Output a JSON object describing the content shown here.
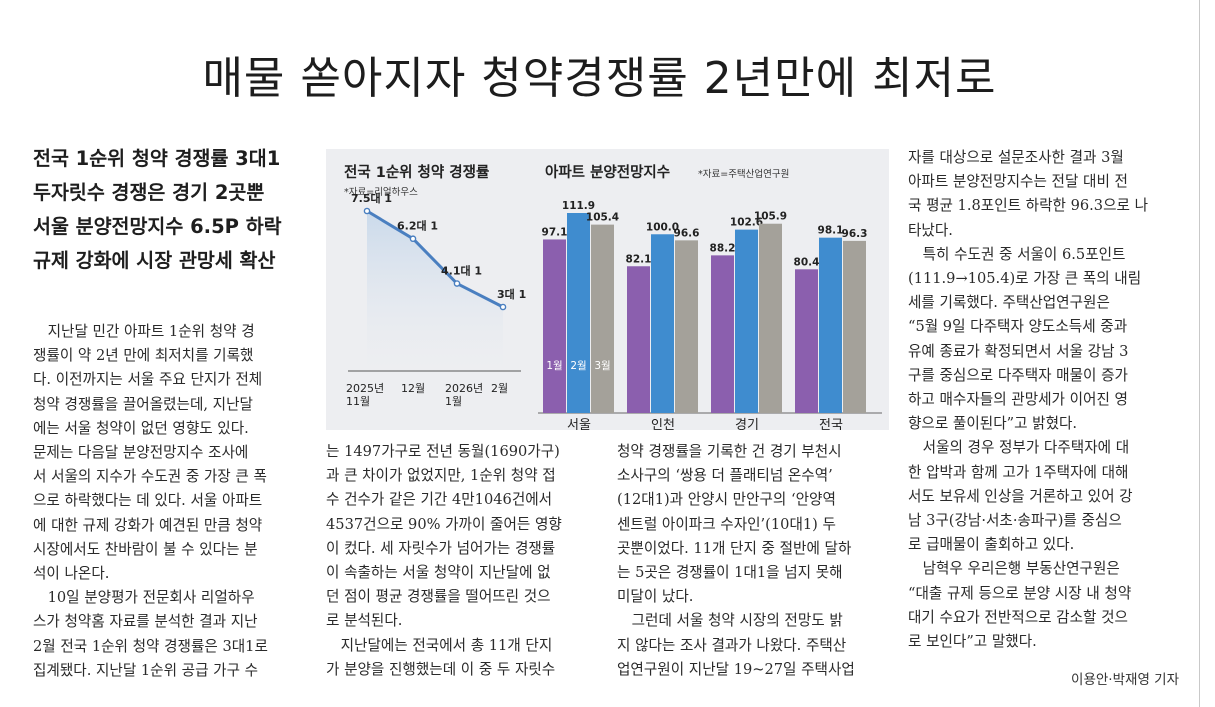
{
  "headline": "매물 쏟아지자 청약경쟁률 2년만에 최저로",
  "subheads": [
    "전국 1순위 청약 경쟁률 3대1",
    "두자릿수 경쟁은 경기 2곳뿐",
    "서울 분양전망지수 6.5P 하락",
    "규제 강화에 시장 관망세 확산"
  ],
  "columns": [
    [
      "　지난달 민간 아파트 1순위 청약 경",
      "쟁률이 약 2년 만에 최저치를 기록했",
      "다. 이전까지는 서울 주요 단지가 전체",
      "청약 경쟁률을 끌어올렸는데, 지난달",
      "에는 서울 청약이 없던 영향도 있다.",
      "문제는 다음달 분양전망지수 조사에",
      "서 서울의 지수가 수도권 중 가장 큰 폭",
      "으로 하락했다는 데 있다. 서울 아파트",
      "에 대한 규제 강화가 예견된 만큼 청약",
      "시장에서도 찬바람이 불 수 있다는 분",
      "석이 나온다.",
      "　10일 분양평가 전문회사 리얼하우",
      "스가 청약홈 자료를 분석한 결과 지난",
      "2월 전국 1순위 청약 경쟁률은 3대1로",
      "집계됐다. 지난달 1순위 공급 가구 수"
    ],
    [
      "는 1497가구로 전년 동월(1690가구)",
      "과 큰 차이가 없었지만, 1순위 청약 접",
      "수 건수가 같은 기간 4만1046건에서",
      "4537건으로 90% 가까이 줄어든 영향",
      "이 컸다. 세 자릿수가 넘어가는 경쟁률",
      "이 속출하는 서울 청약이 지난달에 없",
      "던 점이 평균 경쟁률을 떨어뜨린 것으",
      "로 분석된다.",
      "　지난달에는 전국에서 총 11개 단지",
      "가 분양을 진행했는데 이 중 두 자릿수"
    ],
    [
      "청약 경쟁률을 기록한 건 경기 부천시",
      "소사구의 ‘쌍용 더 플래티넘 온수역’",
      "(12대1)과 안양시 만안구의 ‘안양역",
      "센트럴 아이파크 수자인’(10대1) 두",
      "곳뿐이었다. 11개 단지 중 절반에 달하",
      "는 5곳은 경쟁률이 1대1을 넘지 못해",
      "미달이 났다.",
      "　그런데 서울 청약 시장의 전망도 밝",
      "지 않다는 조사 결과가 나왔다. 주택산",
      "업연구원이 지난달 19~27일 주택사업"
    ],
    [
      "자를 대상으로 설문조사한 결과 3월",
      "아파트 분양전망지수는 전달 대비 전",
      "국 평균 1.8포인트 하락한 96.3으로 나",
      "타났다.",
      "　특히 수도권 중 서울이 6.5포인트",
      "(111.9→105.4)로 가장 큰 폭의 내림",
      "세를  기록했다.  주택산업연구원은",
      "“5월 9일 다주택자 양도소득세 중과",
      "유예 종료가 확정되면서 서울 강남 3",
      "구를 중심으로 다주택자 매물이 증가",
      "하고 매수자들의 관망세가 이어진 영",
      "향으로 풀이된다”고 밝혔다.",
      "　서울의 경우 정부가 다주택자에 대",
      "한 압박과 함께 고가 1주택자에 대해",
      "서도 보유세 인상을 거론하고 있어 강",
      "남 3구(강남·서초·송파구)를 중심으",
      "로 급매물이 출회하고 있다.",
      "　남혁우 우리은행 부동산연구원은",
      "“대출 규제 등으로 분양 시장 내 청약",
      "대기 수요가 전반적으로 감소할 것으",
      "로 보인다”고 말했다."
    ]
  ],
  "byline": "이용안·박재영 기자",
  "chart_data": [
    {
      "type": "line",
      "title": "전국 1순위 청약 경쟁률",
      "source": "*자료=리얼하우스",
      "x_labels": [
        [
          "2025년",
          "11월"
        ],
        [
          "12월"
        ],
        [
          "2026년",
          "1월"
        ],
        [
          "2월"
        ]
      ],
      "values": [
        7.5,
        6.2,
        4.1,
        3
      ],
      "data_labels": [
        "7.5대 1",
        "6.2대 1",
        "4.1대 1",
        "3대 1"
      ],
      "ylim": [
        0,
        9
      ],
      "line_color": "#4a7fc0"
    },
    {
      "type": "bar",
      "title": "아파트 분양전망지수",
      "source": "*자료=주택산업연구원",
      "categories": [
        "서울",
        "인천",
        "경기",
        "전국"
      ],
      "series": [
        {
          "name": "1월",
          "color": "#8b5fae",
          "values": [
            97.1,
            82.1,
            88.2,
            80.4
          ]
        },
        {
          "name": "2월",
          "color": "#3f8ccf",
          "values": [
            111.9,
            100.0,
            102.6,
            98.1
          ]
        },
        {
          "name": "3월",
          "color": "#a4a19a",
          "values": [
            105.4,
            96.6,
            105.9,
            96.3
          ]
        }
      ],
      "data_labels": [
        [
          "97.1",
          "111.9",
          "105.4"
        ],
        [
          "82.1",
          "100.0",
          "96.6"
        ],
        [
          "88.2",
          "102.6",
          "105.9"
        ],
        [
          "80.4",
          "98.1",
          "96.3"
        ]
      ]
    }
  ]
}
